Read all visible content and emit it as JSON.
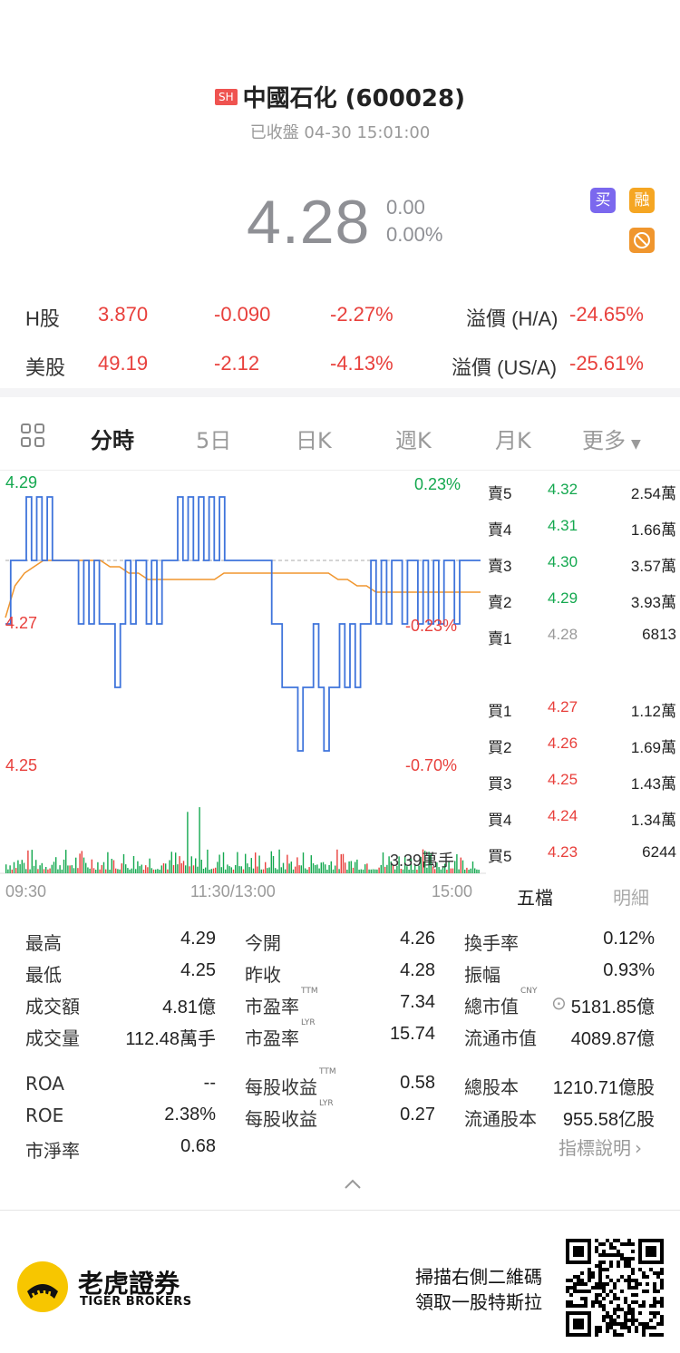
{
  "header": {
    "exchange_badge": "SH",
    "title": "中國石化 (600028)",
    "status": "已收盤 04-30 15:01:00"
  },
  "quote": {
    "price": "4.28",
    "change": "0.00",
    "change_pct": "0.00%",
    "badges": {
      "buy": "买",
      "margin": "融",
      "no_short": "⊘"
    }
  },
  "related": [
    {
      "label": "H股",
      "price": "3.870",
      "change": "-0.090",
      "pct": "-2.27%",
      "premium_label": "溢價 (H/A)",
      "premium": "-24.65%"
    },
    {
      "label": "美股",
      "price": "49.19",
      "change": "-2.12",
      "pct": "-4.13%",
      "premium_label": "溢價 (US/A)",
      "premium": "-25.61%"
    }
  ],
  "tabs": {
    "grid_icon": "grid-icon",
    "items": [
      "分時",
      "5日",
      "日K",
      "週K",
      "月K",
      "更多"
    ],
    "active": "分時"
  },
  "chart": {
    "y_top": "4.29",
    "y_mid": "4.27",
    "y_bot": "4.25",
    "pct_top": "0.23%",
    "pct_mid": "-0.23%",
    "pct_bot": "-0.70%",
    "volume_label": "3.39萬手",
    "x_start": "09:30",
    "x_mid": "11:30/13:00",
    "x_end": "15:00"
  },
  "chart_data": {
    "type": "line",
    "xlabel": "",
    "ylabel": "",
    "x_ticks": [
      "09:30",
      "11:30/13:00",
      "15:00"
    ],
    "ylim": [
      4.25,
      4.29
    ],
    "reference_price": 4.28,
    "grid": false,
    "series": [
      {
        "name": "price",
        "color": "#3f74db",
        "values": [
          4.27,
          4.28,
          4.28,
          4.28,
          4.29,
          4.28,
          4.29,
          4.28,
          4.29,
          4.28,
          4.28,
          4.28,
          4.28,
          4.28,
          4.27,
          4.28,
          4.27,
          4.28,
          4.27,
          4.27,
          4.27,
          4.26,
          4.27,
          4.28,
          4.27,
          4.28,
          4.28,
          4.27,
          4.28,
          4.27,
          4.28,
          4.28,
          4.28,
          4.29,
          4.28,
          4.29,
          4.28,
          4.29,
          4.28,
          4.29,
          4.28,
          4.29,
          4.28,
          4.28,
          4.28,
          4.28,
          4.28,
          4.28,
          4.28,
          4.28,
          4.28,
          4.27,
          4.27,
          4.26,
          4.26,
          4.26,
          4.25,
          4.26,
          4.26,
          4.27,
          4.26,
          4.25,
          4.26,
          4.26,
          4.27,
          4.26,
          4.27,
          4.26,
          4.27,
          4.27,
          4.28,
          4.27,
          4.28,
          4.27,
          4.28,
          4.28,
          4.27,
          4.28,
          4.28,
          4.27,
          4.28,
          4.27,
          4.28,
          4.27,
          4.28,
          4.28,
          4.27,
          4.28,
          4.28,
          4.28,
          4.28,
          4.28
        ]
      },
      {
        "name": "avg",
        "color": "#f0962e",
        "values": [
          4.271,
          4.276,
          4.278,
          4.279,
          4.28,
          4.28,
          4.28,
          4.28,
          4.28,
          4.28,
          4.28,
          4.279,
          4.279,
          4.278,
          4.278,
          4.277,
          4.277,
          4.277,
          4.277,
          4.277,
          4.277,
          4.277,
          4.277,
          4.278,
          4.278,
          4.278,
          4.278,
          4.278,
          4.278,
          4.278,
          4.278,
          4.278,
          4.278,
          4.278,
          4.278,
          4.277,
          4.277,
          4.276,
          4.276,
          4.275,
          4.275,
          4.275,
          4.275,
          4.275,
          4.275,
          4.275,
          4.275,
          4.275,
          4.275,
          4.275,
          4.275
        ]
      }
    ]
  },
  "order_book": {
    "asks": [
      {
        "label": "賣5",
        "price": "4.32",
        "vol": "2.54萬"
      },
      {
        "label": "賣4",
        "price": "4.31",
        "vol": "1.66萬"
      },
      {
        "label": "賣3",
        "price": "4.30",
        "vol": "3.57萬"
      },
      {
        "label": "賣2",
        "price": "4.29",
        "vol": "3.93萬"
      },
      {
        "label": "賣1",
        "price": "4.28",
        "vol": "6813"
      }
    ],
    "bids": [
      {
        "label": "買1",
        "price": "4.27",
        "vol": "1.12萬"
      },
      {
        "label": "買2",
        "price": "4.26",
        "vol": "1.69萬"
      },
      {
        "label": "買3",
        "price": "4.25",
        "vol": "1.43萬"
      },
      {
        "label": "買4",
        "price": "4.24",
        "vol": "1.34萬"
      },
      {
        "label": "買5",
        "price": "4.23",
        "vol": "6244"
      }
    ],
    "tab_levels": "五檔",
    "tab_detail": "明細"
  },
  "stats": {
    "c1": [
      {
        "label": "最高",
        "value": "4.29"
      },
      {
        "label": "最低",
        "value": "4.25"
      },
      {
        "label": "成交額",
        "value": "4.81億"
      },
      {
        "label": "成交量",
        "value": "112.48萬手"
      }
    ],
    "c2": [
      {
        "label": "今開",
        "value": "4.26",
        "sup": ""
      },
      {
        "label": "昨收",
        "value": "4.28",
        "sup": ""
      },
      {
        "label": "市盈率",
        "value": "7.34",
        "sup": "TTM"
      },
      {
        "label": "市盈率",
        "value": "15.74",
        "sup": "LYR"
      }
    ],
    "c3": [
      {
        "label": "換手率",
        "value": "0.12%",
        "sup": ""
      },
      {
        "label": "振幅",
        "value": "0.93%",
        "sup": ""
      },
      {
        "label": "總市值",
        "value": "5181.85億",
        "sup": "CNY"
      },
      {
        "label": "流通市值",
        "value": "4089.87億",
        "sup": ""
      }
    ],
    "d1": [
      {
        "label": "ROA",
        "value": "--"
      },
      {
        "label": "ROE",
        "value": "2.38%"
      },
      {
        "label": "市淨率",
        "value": "0.68"
      }
    ],
    "d2": [
      {
        "label": "每股收益",
        "value": "0.58",
        "sup": "TTM"
      },
      {
        "label": "每股收益",
        "value": "0.27",
        "sup": "LYR"
      }
    ],
    "d3": [
      {
        "label": "總股本",
        "value": "1210.71億股"
      },
      {
        "label": "流通股本",
        "value": "955.58亿股"
      }
    ],
    "indicator_link": "指標說明"
  },
  "footer": {
    "brand_cn": "老虎證券",
    "brand_en": "TIGER BROKERS",
    "promo_line1": "掃描右側二維碼",
    "promo_line2": "領取一股特斯拉"
  },
  "colors": {
    "up": "#e8403c",
    "down": "#14a84f",
    "price_line": "#3f74db",
    "avg_line": "#f0962e"
  }
}
